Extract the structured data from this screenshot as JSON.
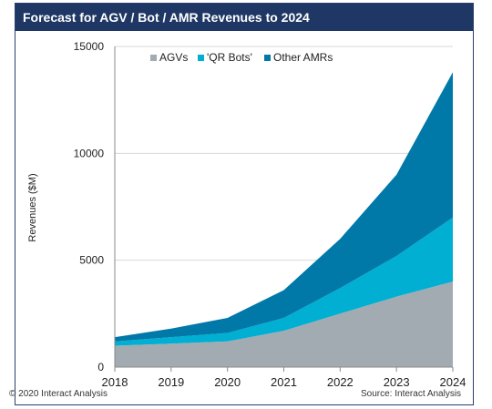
{
  "title": "Forecast for AGV / Bot / AMR Revenues to 2024",
  "copyright": "© 2020 Interact Analysis",
  "source": "Source: Interact Analysis",
  "chart_data": {
    "type": "area",
    "stacked": true,
    "x": [
      "2018",
      "2019",
      "2020",
      "2021",
      "2022",
      "2023",
      "2024"
    ],
    "series": [
      {
        "name": "AGVs",
        "color": "#a2abb2",
        "values": [
          1000,
          1100,
          1200,
          1700,
          2500,
          3300,
          4000
        ]
      },
      {
        "name": "'QR Bots'",
        "color": "#00afd2",
        "values": [
          200,
          300,
          400,
          600,
          1200,
          1900,
          3000
        ]
      },
      {
        "name": "Other AMRs",
        "color": "#0078a8",
        "values": [
          200,
          400,
          700,
          1300,
          2300,
          3800,
          6800
        ]
      }
    ],
    "ylabel": "Revenues ($M)",
    "xlabel": "",
    "ylim": [
      0,
      15000
    ],
    "yticks": [
      "0",
      "5000",
      "10000",
      "15000"
    ],
    "grid": true,
    "legend_position": "top"
  }
}
